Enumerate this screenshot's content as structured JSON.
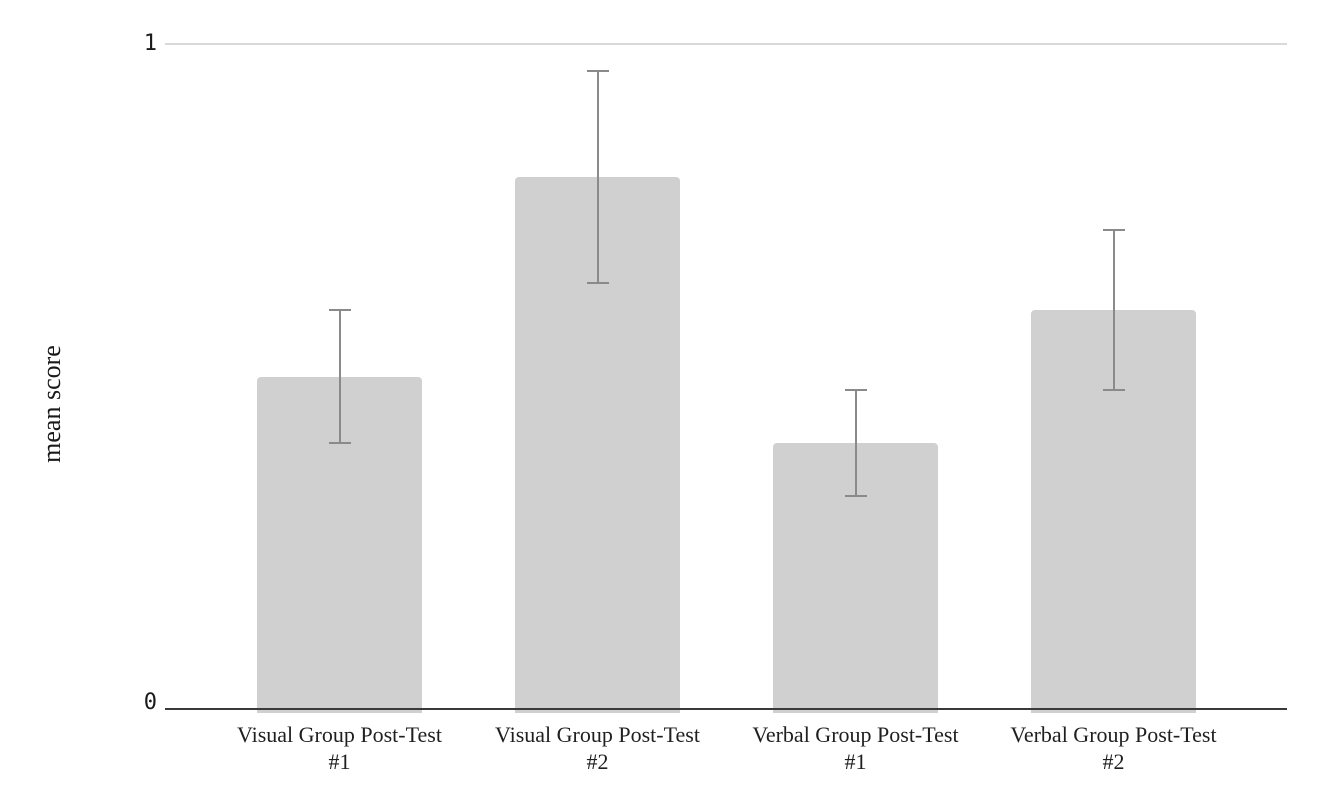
{
  "chart_data": {
    "type": "bar",
    "title": "",
    "categories": [
      "Visual Group Post-Test #1",
      "Visual Group Post-Test #2",
      "Verbal Group Post-Test #1",
      "Verbal Group Post-Test #2"
    ],
    "category_lines": [
      [
        "Visual Group Post-Test",
        "#1"
      ],
      [
        "Visual Group Post-Test",
        "#2"
      ],
      [
        "Verbal Group Post-Test",
        "#1"
      ],
      [
        "Verbal Group Post-Test",
        "#2"
      ]
    ],
    "series": [
      {
        "name": "mean score",
        "values": [
          0.5,
          0.8,
          0.4,
          0.6
        ],
        "error_bars": [
          0.1,
          0.16,
          0.08,
          0.12
        ]
      }
    ],
    "xlabel": "",
    "ylabel": "mean score",
    "ylim": [
      0,
      1
    ],
    "ytick_labels": [
      "0",
      "1"
    ],
    "gridlines": [
      "y=1"
    ],
    "legend": "none",
    "colors": {
      "bar_fill": "#d0d0d0",
      "error_bar": "#8a8a8a",
      "gridline": "#d9d9d9",
      "axis_line": "#3a3a3a",
      "text": "#1a1a1a",
      "background": "#ffffff"
    }
  }
}
